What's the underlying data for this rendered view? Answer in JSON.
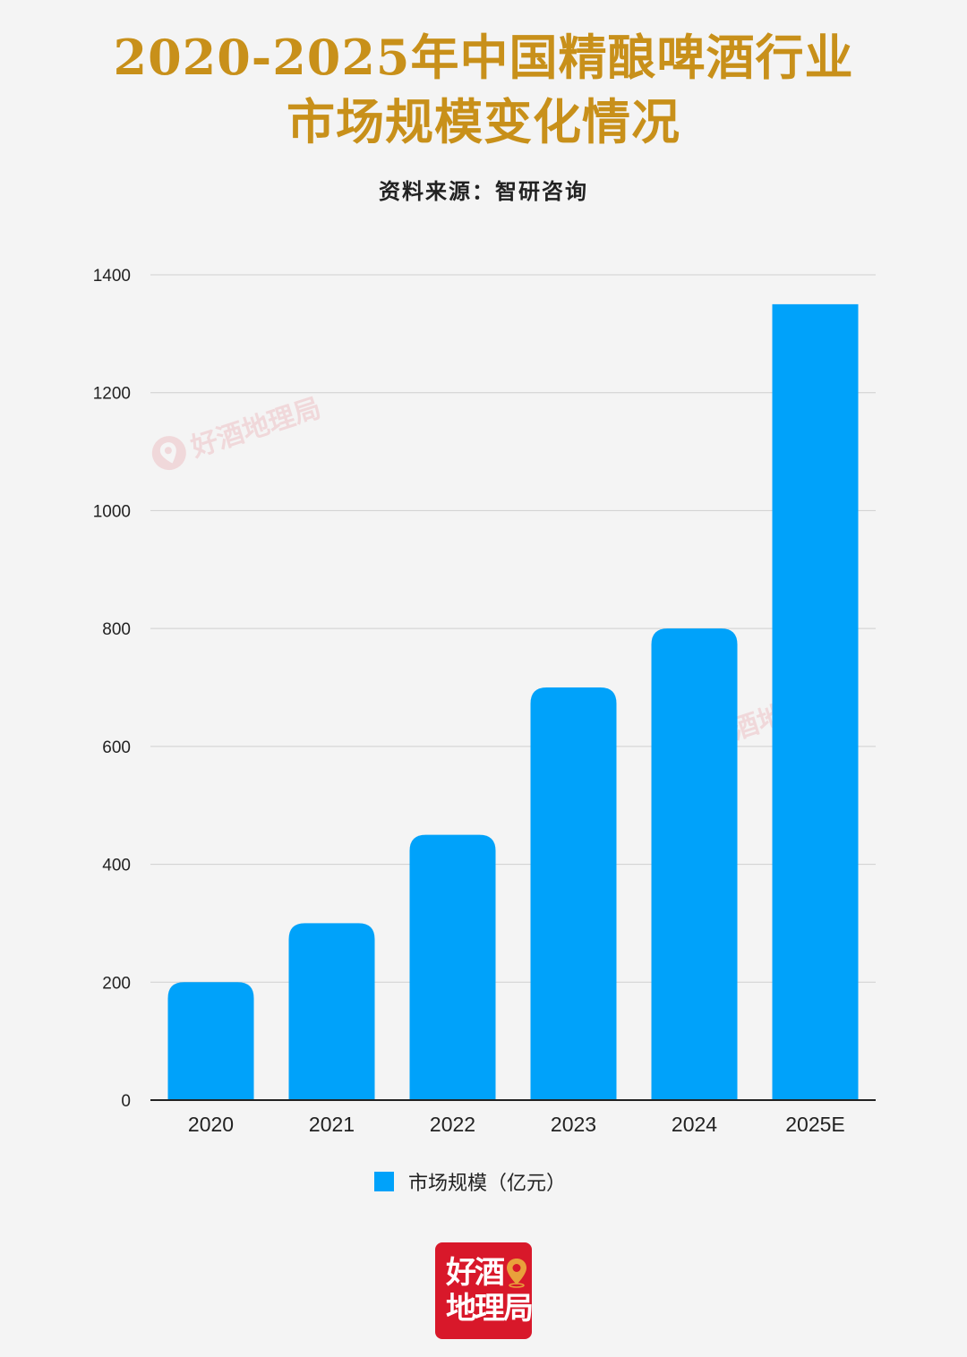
{
  "header": {
    "title_line1": "2020-2025年中国精酿啤酒行业",
    "title_line2": "市场规模变化情况",
    "source": "资料来源：智研咨询"
  },
  "colors": {
    "title": "#c8901a",
    "bar": "#00a2fa",
    "grid": "#cfcfcf",
    "axis": "#222222",
    "brand": "#d8182a"
  },
  "chart_data": {
    "type": "bar",
    "categories": [
      "2020",
      "2021",
      "2022",
      "2023",
      "2024",
      "2025E"
    ],
    "series": [
      {
        "name": "市场规模（亿元）",
        "values": [
          200,
          300,
          450,
          700,
          800,
          1350
        ]
      }
    ],
    "ylim": [
      0,
      1400
    ],
    "yticks": [
      0,
      200,
      400,
      600,
      800,
      1000,
      1200,
      1400
    ],
    "grid": true,
    "legend_position": "bottom-center"
  },
  "legend": {
    "label": "市场规模（亿元）"
  },
  "brand": {
    "logo_line1": "好酒",
    "logo_line2": "地理局",
    "watermark_text": "好酒地理局",
    "pin_icon": "map-pin-icon"
  }
}
